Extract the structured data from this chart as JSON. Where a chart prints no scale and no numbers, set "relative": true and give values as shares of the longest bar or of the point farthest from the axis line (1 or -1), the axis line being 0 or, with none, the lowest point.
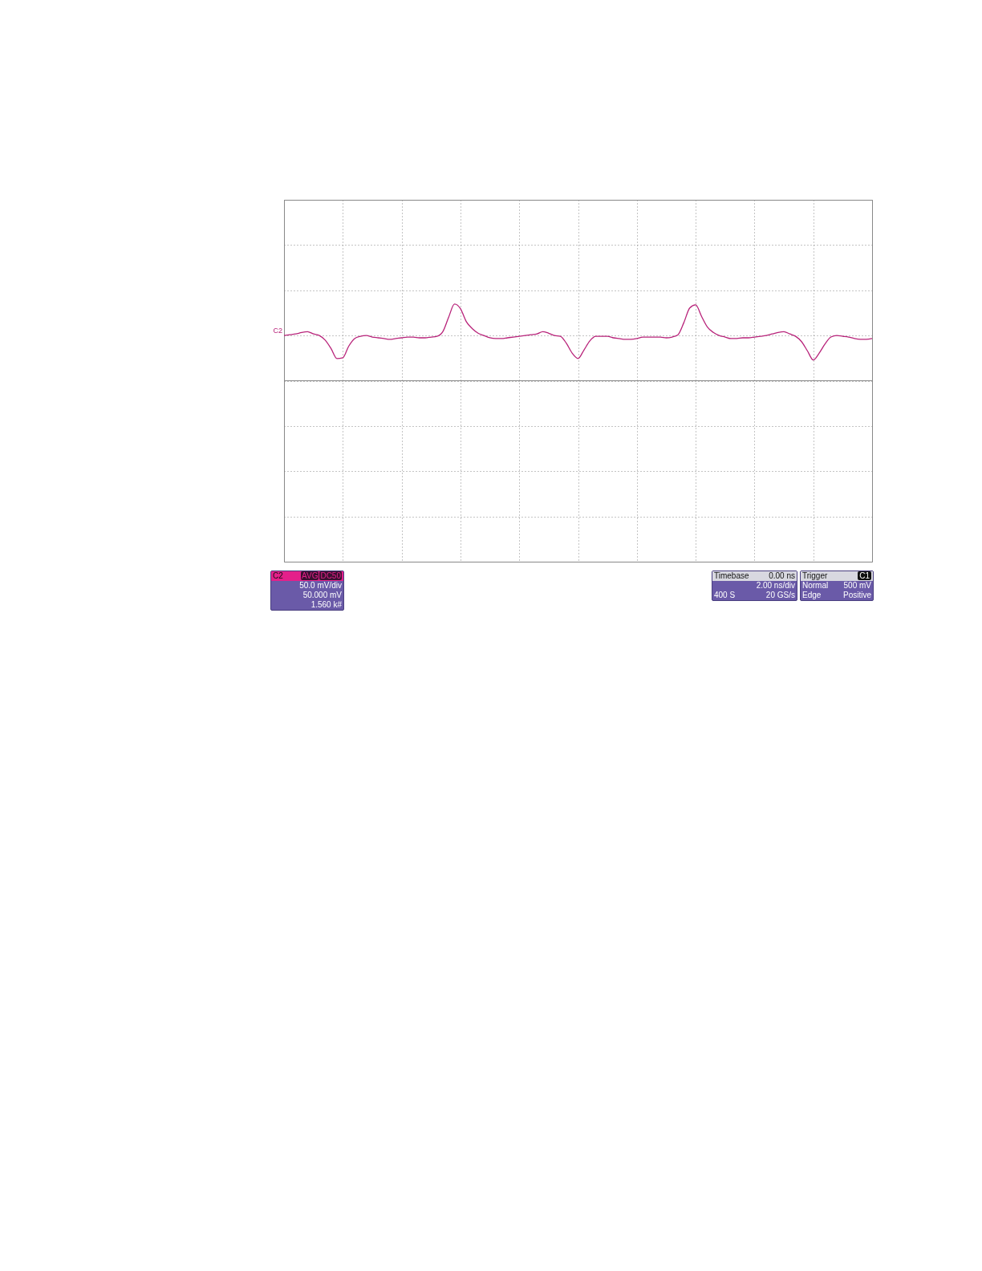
{
  "chart_data": {
    "type": "line",
    "relative": true,
    "grid": true,
    "legend": false,
    "categories": [
      null,
      null,
      null,
      null,
      null,
      null,
      null,
      null,
      null,
      null,
      null,
      null,
      null,
      null,
      null,
      null,
      null,
      null,
      null,
      null,
      null,
      null,
      null,
      null,
      null,
      null,
      null,
      null,
      null,
      null,
      null,
      null,
      null,
      null,
      null,
      null,
      null,
      null,
      null,
      null,
      null,
      null,
      null,
      null,
      null,
      null,
      null,
      null,
      null,
      null,
      null,
      null,
      null,
      null,
      null,
      null,
      null,
      null,
      null,
      null,
      null,
      null,
      null,
      null,
      null,
      null,
      null,
      null,
      null,
      null,
      null,
      null,
      null,
      null,
      null,
      null,
      null,
      null,
      null,
      null,
      null,
      null,
      null,
      null,
      null,
      null,
      null,
      null,
      null,
      null,
      null,
      null,
      null,
      null,
      null,
      null,
      null,
      null,
      null,
      null,
      null
    ],
    "series": [
      {
        "color": "#b8237a",
        "values": [
          0.59,
          0.6,
          0.61,
          0.63,
          0.64,
          0.61,
          0.59,
          0.53,
          0.42,
          0.29,
          0.3,
          0.45,
          0.55,
          0.58,
          0.59,
          0.57,
          0.56,
          0.55,
          0.54,
          0.55,
          0.56,
          0.57,
          0.57,
          0.56,
          0.56,
          0.57,
          0.58,
          0.64,
          0.83,
          1,
          0.94,
          0.77,
          0.68,
          0.62,
          0.59,
          0.56,
          0.55,
          0.55,
          0.56,
          0.57,
          0.58,
          0.59,
          0.6,
          0.61,
          0.64,
          0.62,
          0.59,
          0.58,
          0.49,
          0.36,
          0.29,
          0.4,
          0.52,
          0.58,
          0.58,
          0.58,
          0.56,
          0.55,
          0.54,
          0.54,
          0.55,
          0.57,
          0.57,
          0.57,
          0.57,
          0.56,
          0.57,
          0.6,
          0.76,
          0.95,
          0.99,
          0.84,
          0.7,
          0.63,
          0.59,
          0.57,
          0.55,
          0.55,
          0.56,
          0.56,
          0.57,
          0.58,
          0.59,
          0.61,
          0.63,
          0.64,
          0.61,
          0.58,
          0.51,
          0.39,
          0.27,
          0.36,
          0.48,
          0.57,
          0.59,
          0.58,
          0.57,
          0.55,
          0.54,
          0.54,
          0.55
        ]
      }
    ],
    "annotations": [
      "C2",
      "AVG",
      "DC50",
      "50.0 mV/div",
      "50.000 mV",
      "1.560 k#",
      "Timebase",
      "0.00 ns",
      "2.00 ns/div",
      "400 S",
      "20 GS/s",
      "Trigger",
      "C1",
      "Normal",
      "500 mV",
      "Edge",
      "Positive",
      "C2"
    ]
  }
}
